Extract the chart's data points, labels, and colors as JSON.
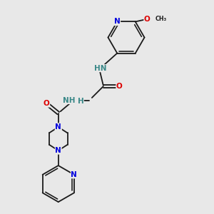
{
  "bg_color": "#e8e8e8",
  "bond_color": "#1a1a1a",
  "N_color": "#0000dd",
  "O_color": "#dd0000",
  "NH_color": "#3a8888",
  "font_size": 7.5,
  "bond_width": 1.3,
  "dbo": 0.06,
  "xlim": [
    0,
    10
  ],
  "ylim": [
    0,
    10
  ]
}
